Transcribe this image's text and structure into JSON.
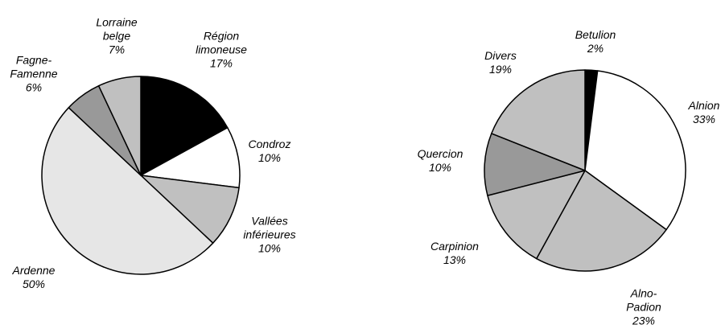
{
  "chart_data": [
    {
      "type": "pie",
      "categories": [
        "Région limoneuse",
        "Condroz",
        "Vallées inférieures",
        "Ardenne",
        "Fagne-Famenne",
        "Lorraine belge"
      ],
      "values": [
        17,
        10,
        10,
        50,
        6,
        7
      ],
      "value_labels": [
        "17%",
        "10%",
        "10%",
        "50%",
        "6%",
        "7%"
      ],
      "colors": [
        "#000000",
        "#ffffff",
        "#c0c0c0",
        "#e6e6e6",
        "#999999",
        "#c0c0c0"
      ]
    },
    {
      "type": "pie",
      "categories": [
        "Betulion",
        "Alnion",
        "Alno-Padion",
        "Carpinion",
        "Quercion",
        "Divers"
      ],
      "values": [
        2,
        33,
        23,
        13,
        10,
        19
      ],
      "value_labels": [
        "2%",
        "33%",
        "23%",
        "13%",
        "10%",
        "19%"
      ],
      "colors": [
        "#000000",
        "#ffffff",
        "#c0c0c0",
        "#c0c0c0",
        "#999999",
        "#c0c0c0"
      ]
    }
  ]
}
